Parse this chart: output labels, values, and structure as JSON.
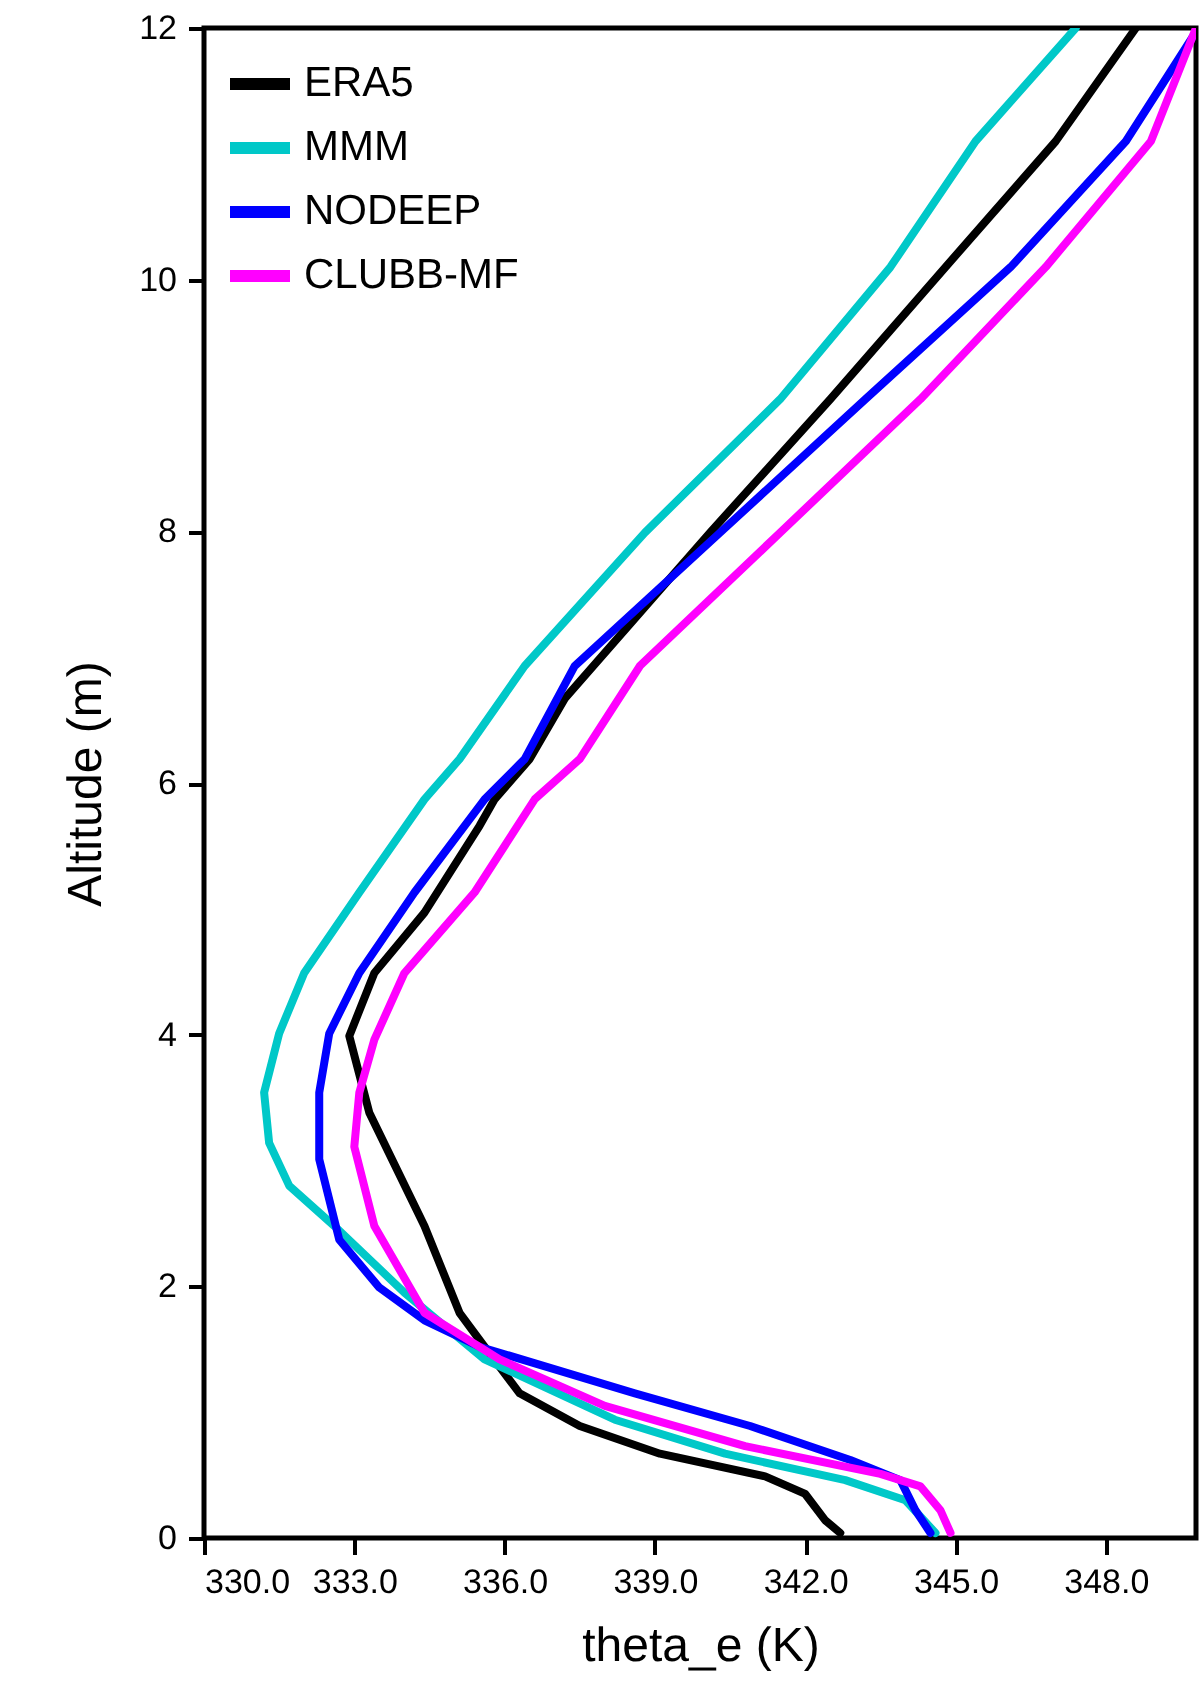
{
  "chart_data": {
    "type": "line",
    "xlabel": "theta_e (K)",
    "ylabel": "Altitude (m)",
    "xlim": [
      330,
      349.8
    ],
    "ylim": [
      0,
      12
    ],
    "xticks": [
      {
        "value": 330,
        "label": "330.0"
      },
      {
        "value": 333,
        "label": "333.0"
      },
      {
        "value": 336,
        "label": "336.0"
      },
      {
        "value": 339,
        "label": "339.0"
      },
      {
        "value": 342,
        "label": "342.0"
      },
      {
        "value": 345,
        "label": "345.0"
      },
      {
        "value": 348,
        "label": "348.0"
      }
    ],
    "yticks": [
      0,
      2,
      4,
      6,
      8,
      10,
      12
    ],
    "legend": "top left",
    "grid": false,
    "marker": "none",
    "line_style": "solid",
    "series": [
      {
        "name": "ERA5",
        "color": "#000000",
        "x": [
          342.7,
          342.4,
          342.0,
          341.2,
          339.1,
          337.5,
          336.3,
          335.6,
          335.1,
          334.4,
          333.3,
          332.9,
          333.4,
          334.4,
          335.5,
          335.8,
          336.5,
          337.2,
          340.1,
          342.5,
          344.8,
          347.0,
          348.6
        ],
        "values": [
          0.04,
          0.14,
          0.35,
          0.49,
          0.67,
          0.89,
          1.15,
          1.52,
          1.79,
          2.48,
          3.38,
          3.99,
          4.49,
          4.97,
          5.66,
          5.87,
          6.19,
          6.67,
          7.99,
          9.05,
          10.1,
          11.1,
          12.0
        ]
      },
      {
        "name": "MMM",
        "color": "#00c8c8",
        "x": [
          344.6,
          344.0,
          342.8,
          340.4,
          338.2,
          335.6,
          334.0,
          332.6,
          331.7,
          331.3,
          331.2,
          331.5,
          332.0,
          333.1,
          334.4,
          335.1,
          336.4,
          338.8,
          341.5,
          343.7,
          345.4,
          347.4
        ],
        "values": [
          0.04,
          0.3,
          0.46,
          0.67,
          0.94,
          1.42,
          1.95,
          2.48,
          2.8,
          3.14,
          3.54,
          4.01,
          4.49,
          5.13,
          5.87,
          6.19,
          6.93,
          7.99,
          9.05,
          10.1,
          11.1,
          12.0
        ]
      },
      {
        "name": "NODEEP",
        "color": "#0000ff",
        "x": [
          344.5,
          344.2,
          343.9,
          342.9,
          340.9,
          338.6,
          335.5,
          334.4,
          333.5,
          332.7,
          332.3,
          332.3,
          332.5,
          333.1,
          334.2,
          335.6,
          336.4,
          337.4,
          340.3,
          343.2,
          346.1,
          348.4,
          349.8
        ],
        "values": [
          0.04,
          0.22,
          0.46,
          0.62,
          0.89,
          1.15,
          1.52,
          1.73,
          1.99,
          2.37,
          3.01,
          3.54,
          4.01,
          4.49,
          5.13,
          5.87,
          6.19,
          6.93,
          7.99,
          9.05,
          10.1,
          11.1,
          11.97
        ]
      },
      {
        "name": "CLUBB-MF",
        "color": "#ff00ff",
        "x": [
          344.9,
          344.7,
          344.3,
          343.5,
          340.8,
          338.0,
          335.9,
          334.4,
          333.4,
          333.0,
          333.1,
          333.4,
          334.0,
          335.4,
          336.6,
          337.5,
          338.7,
          341.5,
          344.3,
          346.8,
          348.9,
          349.8
        ],
        "values": [
          0.04,
          0.22,
          0.41,
          0.51,
          0.73,
          1.05,
          1.42,
          1.79,
          2.48,
          3.11,
          3.54,
          3.96,
          4.49,
          5.13,
          5.87,
          6.19,
          6.93,
          7.99,
          9.05,
          10.1,
          11.1,
          12.0
        ]
      }
    ]
  }
}
